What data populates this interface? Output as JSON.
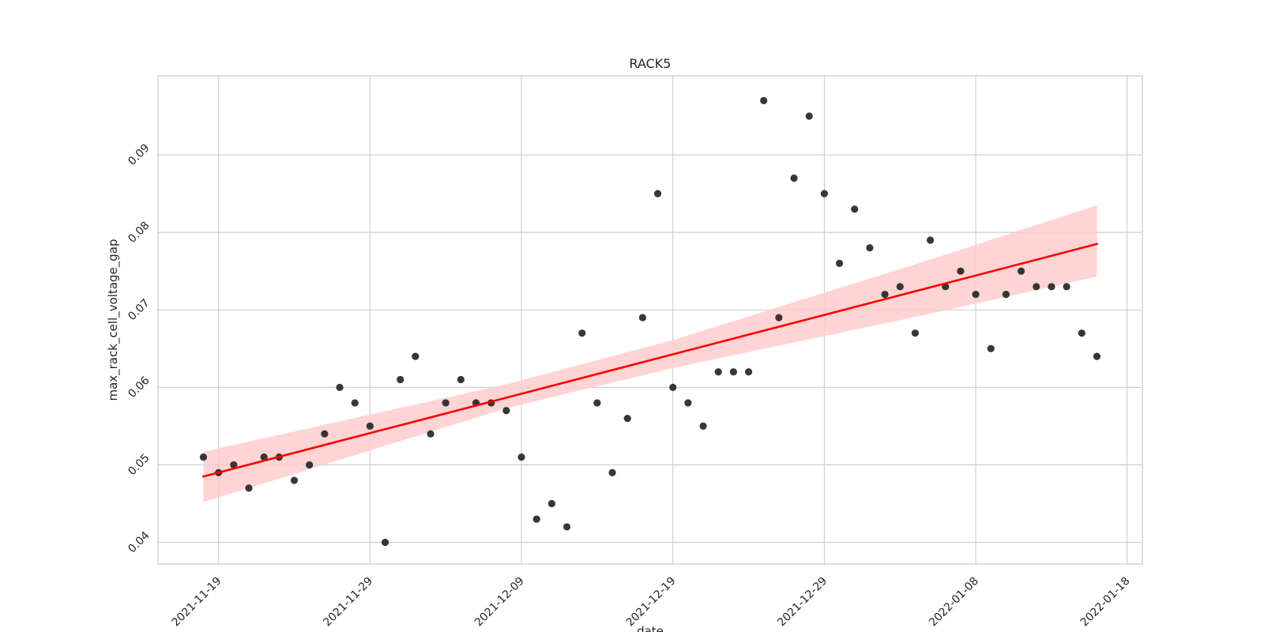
{
  "chart_data": {
    "type": "scatter",
    "title": "RACK5",
    "xlabel": "date",
    "ylabel": "max_rack_cell_voltage_gap",
    "x_type": "date",
    "xlim": [
      "2021-11-15",
      "2022-01-19"
    ],
    "ylim": [
      0.0372,
      0.1002
    ],
    "x_ticks": [
      "2021-11-19",
      "2021-11-29",
      "2021-12-09",
      "2021-12-19",
      "2021-12-29",
      "2022-01-08",
      "2022-01-18"
    ],
    "y_ticks": [
      0.04,
      0.05,
      0.06,
      0.07,
      0.08,
      0.09
    ],
    "y_tick_labels": [
      "0.04",
      "0.05",
      "0.06",
      "0.07",
      "0.08",
      "0.09"
    ],
    "grid": true,
    "colors": {
      "points": "#262626",
      "trend": "#ff0000",
      "band": "#ffcccc",
      "grid": "#cccccc"
    },
    "series": [
      {
        "type": "scatter",
        "points": [
          {
            "x": "2021-11-18",
            "y": 0.051
          },
          {
            "x": "2021-11-19",
            "y": 0.049
          },
          {
            "x": "2021-11-20",
            "y": 0.05
          },
          {
            "x": "2021-11-21",
            "y": 0.047
          },
          {
            "x": "2021-11-22",
            "y": 0.051
          },
          {
            "x": "2021-11-23",
            "y": 0.051
          },
          {
            "x": "2021-11-24",
            "y": 0.048
          },
          {
            "x": "2021-11-25",
            "y": 0.05
          },
          {
            "x": "2021-11-26",
            "y": 0.054
          },
          {
            "x": "2021-11-27",
            "y": 0.06
          },
          {
            "x": "2021-11-28",
            "y": 0.058
          },
          {
            "x": "2021-11-29",
            "y": 0.055
          },
          {
            "x": "2021-11-30",
            "y": 0.04
          },
          {
            "x": "2021-12-01",
            "y": 0.061
          },
          {
            "x": "2021-12-02",
            "y": 0.064
          },
          {
            "x": "2021-12-03",
            "y": 0.054
          },
          {
            "x": "2021-12-04",
            "y": 0.058
          },
          {
            "x": "2021-12-05",
            "y": 0.061
          },
          {
            "x": "2021-12-06",
            "y": 0.058
          },
          {
            "x": "2021-12-07",
            "y": 0.058
          },
          {
            "x": "2021-12-08",
            "y": 0.057
          },
          {
            "x": "2021-12-09",
            "y": 0.051
          },
          {
            "x": "2021-12-10",
            "y": 0.043
          },
          {
            "x": "2021-12-11",
            "y": 0.045
          },
          {
            "x": "2021-12-12",
            "y": 0.042
          },
          {
            "x": "2021-12-13",
            "y": 0.067
          },
          {
            "x": "2021-12-14",
            "y": 0.058
          },
          {
            "x": "2021-12-15",
            "y": 0.049
          },
          {
            "x": "2021-12-16",
            "y": 0.056
          },
          {
            "x": "2021-12-17",
            "y": 0.069
          },
          {
            "x": "2021-12-18",
            "y": 0.085
          },
          {
            "x": "2021-12-19",
            "y": 0.06
          },
          {
            "x": "2021-12-20",
            "y": 0.058
          },
          {
            "x": "2021-12-21",
            "y": 0.055
          },
          {
            "x": "2021-12-22",
            "y": 0.062
          },
          {
            "x": "2021-12-23",
            "y": 0.062
          },
          {
            "x": "2021-12-24",
            "y": 0.062
          },
          {
            "x": "2021-12-25",
            "y": 0.097
          },
          {
            "x": "2021-12-26",
            "y": 0.069
          },
          {
            "x": "2021-12-27",
            "y": 0.087
          },
          {
            "x": "2021-12-28",
            "y": 0.095
          },
          {
            "x": "2021-12-29",
            "y": 0.085
          },
          {
            "x": "2021-12-30",
            "y": 0.076
          },
          {
            "x": "2021-12-31",
            "y": 0.083
          },
          {
            "x": "2022-01-01",
            "y": 0.078
          },
          {
            "x": "2022-01-02",
            "y": 0.072
          },
          {
            "x": "2022-01-03",
            "y": 0.073
          },
          {
            "x": "2022-01-04",
            "y": 0.067
          },
          {
            "x": "2022-01-05",
            "y": 0.079
          },
          {
            "x": "2022-01-06",
            "y": 0.073
          },
          {
            "x": "2022-01-07",
            "y": 0.075
          },
          {
            "x": "2022-01-08",
            "y": 0.072
          },
          {
            "x": "2022-01-09",
            "y": 0.065
          },
          {
            "x": "2022-01-10",
            "y": 0.072
          },
          {
            "x": "2022-01-11",
            "y": 0.075
          },
          {
            "x": "2022-01-12",
            "y": 0.073
          },
          {
            "x": "2022-01-13",
            "y": 0.073
          },
          {
            "x": "2022-01-14",
            "y": 0.073
          },
          {
            "x": "2022-01-15",
            "y": 0.067
          },
          {
            "x": "2022-01-16",
            "y": 0.064
          }
        ]
      },
      {
        "type": "regression-line",
        "line": [
          {
            "x": "2021-11-18",
            "y": 0.0485
          },
          {
            "x": "2022-01-16",
            "y": 0.0785
          }
        ],
        "confidence_band": [
          {
            "x": "2021-11-18",
            "lower": 0.0452,
            "upper": 0.0517
          },
          {
            "x": "2021-12-08",
            "lower": 0.0573,
            "upper": 0.0604
          },
          {
            "x": "2021-12-19",
            "lower": 0.0625,
            "upper": 0.0661
          },
          {
            "x": "2022-01-05",
            "lower": 0.0695,
            "upper": 0.0765
          },
          {
            "x": "2022-01-16",
            "lower": 0.0743,
            "upper": 0.0835
          }
        ]
      }
    ]
  }
}
